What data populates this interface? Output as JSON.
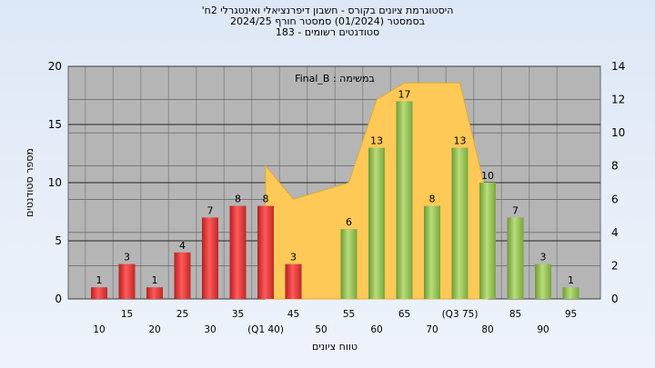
{
  "titles": {
    "line1": "היסטוגרמת ציונים בקורס - חשבון דיפרנציאלי ואינטגרלי 2ח'",
    "line2": "בסמסטר  (01/2024)  סמסטר חורף 2024/25",
    "line3": "סטודנטים רשומים - 183"
  },
  "chart_data": {
    "type": "bar",
    "annotation": "במשימה : Final_B",
    "xlabel": "טווח ציונים",
    "ylabel": "מספר סטודנטים",
    "categories": [
      "10",
      "15",
      "20",
      "25",
      "30",
      "35",
      "(Q1 40)",
      "45",
      "50",
      "55",
      "60",
      "65",
      "70",
      "(Q3 75)",
      "80",
      "85",
      "90",
      "95"
    ],
    "values": [
      1,
      3,
      1,
      4,
      7,
      8,
      8,
      3,
      0,
      6,
      13,
      17,
      8,
      13,
      10,
      7,
      3,
      1
    ],
    "value_labels": [
      "1",
      "3",
      "1",
      "4",
      "7",
      "8",
      "8",
      "3",
      "",
      "6",
      "13",
      "17",
      "8",
      "13",
      "10",
      "7",
      "3",
      "1"
    ],
    "red_categories_count": 8,
    "ylim_left": [
      0,
      20
    ],
    "yticks_left": [
      "0",
      "5",
      "10",
      "15",
      "20"
    ],
    "ylim_right": [
      0,
      14
    ],
    "yticks_right": [
      "0",
      "2",
      "4",
      "6",
      "8",
      "10",
      "12",
      "14"
    ],
    "area_series": {
      "x_start_index": 6,
      "x_end_index": 14,
      "values_right_axis": [
        8,
        6,
        6.5,
        7,
        12,
        13,
        13,
        13,
        6
      ],
      "color": "#ffc957"
    },
    "colors": {
      "red_bar": "#e43a3a",
      "green_bar": "#8fc04f",
      "plot_bg": "#b5b5b5",
      "area": "#ffc957"
    },
    "grid": true
  }
}
